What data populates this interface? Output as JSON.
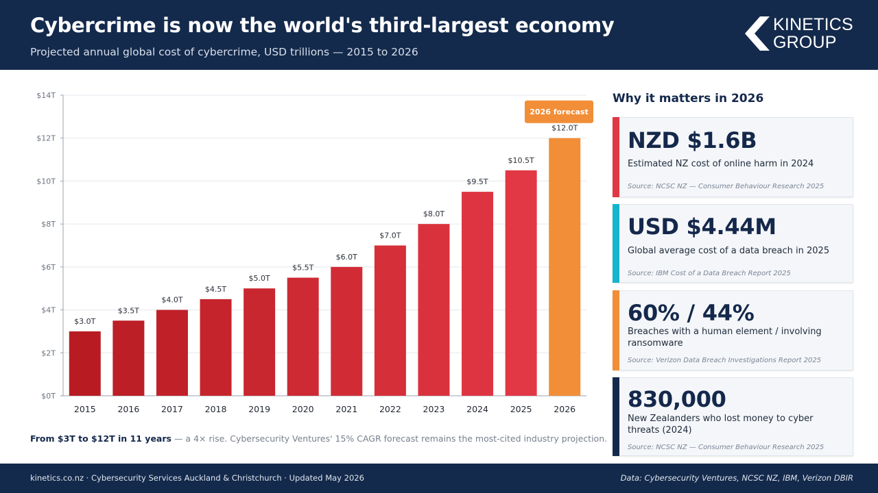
{
  "header": {
    "title": "Cybercrime is now the world's third-largest economy",
    "subtitle": "Projected annual global cost of cybercrime, USD trillions — 2015 to 2026",
    "logo_line1": "KINETICS",
    "logo_line2": "GROUP"
  },
  "colors": {
    "navy": "#142a4c",
    "bar_red": "#c9232c",
    "bar_red_light": "#e23744",
    "forecast_orange": "#f28e37",
    "accent_red": "#e23744",
    "accent_cyan": "#13b5cf",
    "accent_orange": "#f28e37",
    "accent_navy": "#142a4c"
  },
  "chart_data": {
    "type": "bar",
    "title": "",
    "xlabel": "",
    "ylabel": "",
    "categories": [
      "2015",
      "2016",
      "2017",
      "2018",
      "2019",
      "2020",
      "2021",
      "2022",
      "2023",
      "2024",
      "2025",
      "2026"
    ],
    "values": [
      3.0,
      3.5,
      4.0,
      4.5,
      5.0,
      5.5,
      6.0,
      7.0,
      8.0,
      9.5,
      10.5,
      12.0
    ],
    "value_labels": [
      "$3.0T",
      "$3.5T",
      "$4.0T",
      "$4.5T",
      "$5.0T",
      "$5.5T",
      "$6.0T",
      "$7.0T",
      "$8.0T",
      "$9.5T",
      "$10.5T",
      "$12.0T"
    ],
    "ylim": [
      0,
      14
    ],
    "yticks": [
      0,
      2,
      4,
      6,
      8,
      10,
      12,
      14
    ],
    "ytick_labels": [
      "$0T",
      "$2T",
      "$4T",
      "$6T",
      "$8T",
      "$10T",
      "$12T",
      "$14T"
    ],
    "grid": true,
    "highlight": {
      "category": "2026",
      "label": "2026 forecast"
    }
  },
  "caption": {
    "bold": "From $3T to $12T in 11 years",
    "rest": " — a 4× rise. Cybersecurity Ventures' 15% CAGR forecast remains the most-cited industry projection."
  },
  "panel": {
    "title": "Why it matters in 2026",
    "cards": [
      {
        "stat": "NZD $1.6B",
        "desc": "Estimated NZ cost of online harm in 2024",
        "source": "Source: NCSC NZ — Consumer Behaviour Research 2025"
      },
      {
        "stat": "USD $4.44M",
        "desc": "Global average cost of a data breach in 2025",
        "source": "Source: IBM Cost of a Data Breach Report 2025"
      },
      {
        "stat": "60% / 44%",
        "desc": "Breaches with a human element / involving ransomware",
        "source": "Source: Verizon Data Breach Investigations Report 2025"
      },
      {
        "stat": "830,000",
        "desc": "New Zealanders who lost money to cyber threats (2024)",
        "source": "Source: NCSC NZ — Consumer Behaviour Research 2025"
      }
    ]
  },
  "footer": {
    "left": "kinetics.co.nz  ·  Cybersecurity Services Auckland & Christchurch  ·  Updated May 2026",
    "right": "Data: Cybersecurity Ventures, NCSC NZ, IBM, Verizon DBIR"
  }
}
